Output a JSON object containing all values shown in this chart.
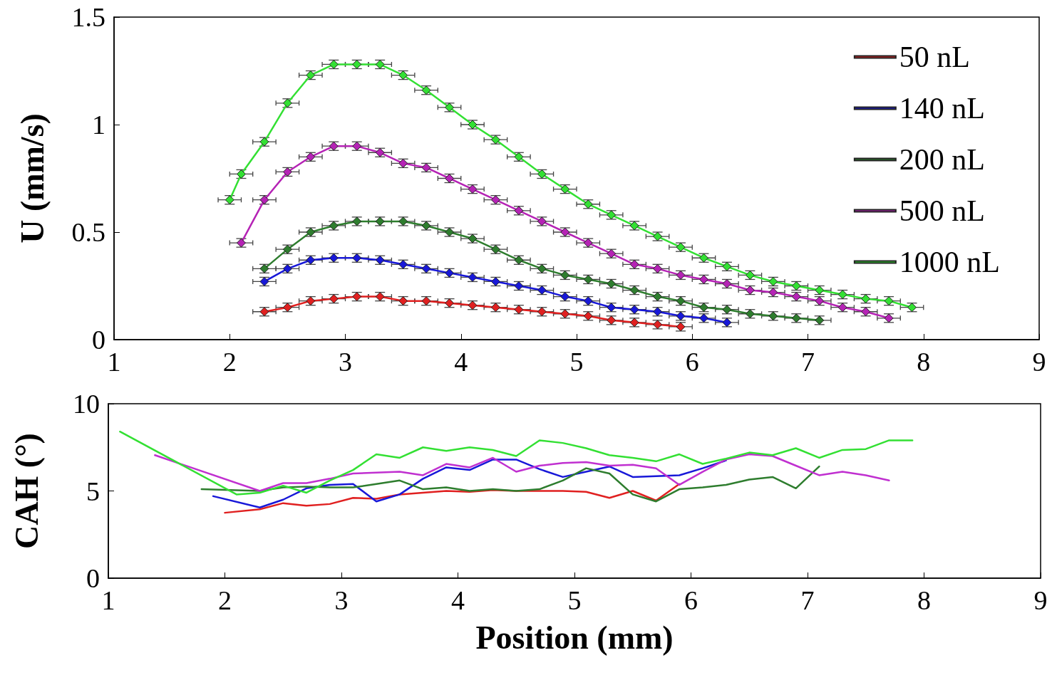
{
  "chart_data": [
    {
      "type": "line",
      "ylabel": "U (mm/s)",
      "xlim": [
        1,
        9
      ],
      "xticks": [
        1,
        2,
        3,
        4,
        5,
        6,
        7,
        8,
        9
      ],
      "ylim": [
        0,
        1.5
      ],
      "yticks": [
        0,
        0.5,
        1,
        1.5
      ],
      "grid": false,
      "legend": "top right",
      "marker": "diamond",
      "line_style": "solid",
      "series": [
        {
          "name": "50 nL",
          "color": "#e02020",
          "x": [
            2.3,
            2.5,
            2.7,
            2.9,
            3.1,
            3.3,
            3.5,
            3.7,
            3.9,
            4.1,
            4.3,
            4.5,
            4.7,
            4.9,
            5.1,
            5.3,
            5.5,
            5.7,
            5.9
          ],
          "values": [
            0.13,
            0.15,
            0.18,
            0.19,
            0.2,
            0.2,
            0.18,
            0.18,
            0.17,
            0.16,
            0.15,
            0.14,
            0.13,
            0.12,
            0.11,
            0.09,
            0.08,
            0.07,
            0.06
          ],
          "errors": [
            0.02,
            0.02,
            0.02,
            0.02,
            0.02,
            0.02,
            0.02,
            0.02,
            0.02,
            0.02,
            0.02,
            0.02,
            0.02,
            0.02,
            0.02,
            0.02,
            0.02,
            0.02,
            0.02
          ],
          "xerrors": [
            0.1,
            0.1,
            0.1,
            0.1,
            0.1,
            0.1,
            0.1,
            0.1,
            0.1,
            0.1,
            0.1,
            0.1,
            0.1,
            0.1,
            0.1,
            0.1,
            0.1,
            0.1,
            0.1
          ]
        },
        {
          "name": "140 nL",
          "color": "#1818d8",
          "x": [
            2.3,
            2.5,
            2.7,
            2.9,
            3.1,
            3.3,
            3.5,
            3.7,
            3.9,
            4.1,
            4.3,
            4.5,
            4.7,
            4.9,
            5.1,
            5.3,
            5.5,
            5.7,
            5.9,
            6.1,
            6.3
          ],
          "values": [
            0.27,
            0.33,
            0.37,
            0.38,
            0.38,
            0.37,
            0.35,
            0.33,
            0.31,
            0.29,
            0.27,
            0.25,
            0.23,
            0.2,
            0.18,
            0.15,
            0.14,
            0.13,
            0.11,
            0.1,
            0.08
          ],
          "errors": [
            0.02,
            0.02,
            0.02,
            0.02,
            0.02,
            0.02,
            0.02,
            0.02,
            0.02,
            0.02,
            0.02,
            0.02,
            0.02,
            0.02,
            0.02,
            0.02,
            0.02,
            0.02,
            0.02,
            0.02,
            0.02
          ],
          "xerrors": [
            0.1,
            0.1,
            0.1,
            0.1,
            0.1,
            0.1,
            0.1,
            0.1,
            0.1,
            0.1,
            0.1,
            0.1,
            0.1,
            0.1,
            0.1,
            0.1,
            0.1,
            0.1,
            0.1,
            0.1,
            0.1
          ]
        },
        {
          "name": "200 nL",
          "color": "#2e7d2e",
          "x": [
            2.3,
            2.5,
            2.7,
            2.9,
            3.1,
            3.3,
            3.5,
            3.7,
            3.9,
            4.1,
            4.3,
            4.5,
            4.7,
            4.9,
            5.1,
            5.3,
            5.5,
            5.7,
            5.9,
            6.1,
            6.3,
            6.5,
            6.7,
            6.9,
            7.1
          ],
          "values": [
            0.33,
            0.42,
            0.5,
            0.53,
            0.55,
            0.55,
            0.55,
            0.53,
            0.5,
            0.47,
            0.42,
            0.37,
            0.33,
            0.3,
            0.28,
            0.26,
            0.23,
            0.2,
            0.18,
            0.15,
            0.14,
            0.12,
            0.11,
            0.1,
            0.09
          ],
          "errors": [
            0.02,
            0.02,
            0.02,
            0.02,
            0.02,
            0.02,
            0.02,
            0.02,
            0.02,
            0.02,
            0.02,
            0.02,
            0.02,
            0.02,
            0.02,
            0.02,
            0.02,
            0.02,
            0.02,
            0.02,
            0.02,
            0.02,
            0.02,
            0.02,
            0.02
          ],
          "xerrors": [
            0.1,
            0.1,
            0.1,
            0.1,
            0.1,
            0.1,
            0.1,
            0.1,
            0.1,
            0.1,
            0.1,
            0.1,
            0.1,
            0.1,
            0.1,
            0.1,
            0.1,
            0.1,
            0.1,
            0.1,
            0.1,
            0.1,
            0.1,
            0.1,
            0.1
          ]
        },
        {
          "name": "500 nL",
          "color": "#b523b5",
          "x": [
            2.1,
            2.3,
            2.5,
            2.7,
            2.9,
            3.1,
            3.3,
            3.5,
            3.7,
            3.9,
            4.1,
            4.3,
            4.5,
            4.7,
            4.9,
            5.1,
            5.3,
            5.5,
            5.7,
            5.9,
            6.1,
            6.3,
            6.5,
            6.7,
            6.9,
            7.1,
            7.3,
            7.5,
            7.7
          ],
          "values": [
            0.45,
            0.65,
            0.78,
            0.85,
            0.9,
            0.9,
            0.87,
            0.82,
            0.8,
            0.75,
            0.7,
            0.65,
            0.6,
            0.55,
            0.5,
            0.45,
            0.4,
            0.35,
            0.33,
            0.3,
            0.28,
            0.26,
            0.23,
            0.22,
            0.2,
            0.18,
            0.15,
            0.13,
            0.1
          ],
          "errors": [
            0.02,
            0.02,
            0.02,
            0.02,
            0.02,
            0.02,
            0.02,
            0.02,
            0.02,
            0.02,
            0.02,
            0.02,
            0.02,
            0.02,
            0.02,
            0.02,
            0.02,
            0.02,
            0.02,
            0.02,
            0.02,
            0.02,
            0.02,
            0.02,
            0.02,
            0.02,
            0.02,
            0.02,
            0.02
          ],
          "xerrors": [
            0.1,
            0.1,
            0.1,
            0.1,
            0.1,
            0.1,
            0.1,
            0.1,
            0.1,
            0.1,
            0.1,
            0.1,
            0.1,
            0.1,
            0.1,
            0.1,
            0.1,
            0.1,
            0.1,
            0.1,
            0.1,
            0.1,
            0.1,
            0.1,
            0.1,
            0.1,
            0.1,
            0.1,
            0.1
          ]
        },
        {
          "name": "1000 nL",
          "color": "#33e033",
          "x": [
            2.0,
            2.1,
            2.3,
            2.5,
            2.7,
            2.9,
            3.1,
            3.3,
            3.5,
            3.7,
            3.9,
            4.1,
            4.3,
            4.5,
            4.7,
            4.9,
            5.1,
            5.3,
            5.5,
            5.7,
            5.9,
            6.1,
            6.3,
            6.5,
            6.7,
            6.9,
            7.1,
            7.3,
            7.5,
            7.7,
            7.9
          ],
          "values": [
            0.65,
            0.77,
            0.92,
            1.1,
            1.23,
            1.28,
            1.28,
            1.28,
            1.23,
            1.16,
            1.08,
            1.0,
            0.93,
            0.85,
            0.77,
            0.7,
            0.63,
            0.58,
            0.53,
            0.48,
            0.43,
            0.38,
            0.34,
            0.3,
            0.27,
            0.25,
            0.23,
            0.21,
            0.19,
            0.18,
            0.15
          ],
          "errors": [
            0.02,
            0.02,
            0.02,
            0.02,
            0.02,
            0.02,
            0.02,
            0.02,
            0.02,
            0.02,
            0.02,
            0.02,
            0.02,
            0.02,
            0.02,
            0.02,
            0.02,
            0.02,
            0.02,
            0.02,
            0.02,
            0.02,
            0.02,
            0.02,
            0.02,
            0.02,
            0.02,
            0.02,
            0.02,
            0.02,
            0.02
          ],
          "xerrors": [
            0.1,
            0.1,
            0.1,
            0.1,
            0.1,
            0.1,
            0.1,
            0.1,
            0.1,
            0.1,
            0.1,
            0.1,
            0.1,
            0.1,
            0.1,
            0.1,
            0.1,
            0.1,
            0.1,
            0.1,
            0.1,
            0.1,
            0.1,
            0.1,
            0.1,
            0.1,
            0.1,
            0.1,
            0.1,
            0.1,
            0.1
          ]
        }
      ]
    },
    {
      "type": "line",
      "xlabel": "Position (mm)",
      "ylabel": "CAH (°)",
      "xlim": [
        1,
        9
      ],
      "xticks": [
        1,
        2,
        3,
        4,
        5,
        6,
        7,
        8,
        9
      ],
      "ylim": [
        0,
        10
      ],
      "yticks": [
        0,
        5,
        10
      ],
      "grid": false,
      "legend": false,
      "marker": "none",
      "line_style": "solid",
      "series": [
        {
          "color": "#e02020",
          "x": [
            2.0,
            2.3,
            2.5,
            2.7,
            2.9,
            3.1,
            3.3,
            3.5,
            3.7,
            3.9,
            4.1,
            4.3,
            4.5,
            4.7,
            4.9,
            5.1,
            5.3,
            5.5,
            5.7,
            5.9
          ],
          "values": [
            3.75,
            3.95,
            4.3,
            4.15,
            4.25,
            4.6,
            4.55,
            4.8,
            4.9,
            5.0,
            4.95,
            5.05,
            5.0,
            5.0,
            5.0,
            4.95,
            4.6,
            5.0,
            4.45,
            5.4
          ]
        },
        {
          "color": "#1818d8",
          "x": [
            1.9,
            2.3,
            2.5,
            2.7,
            2.9,
            3.1,
            3.3,
            3.5,
            3.7,
            3.9,
            4.1,
            4.3,
            4.5,
            4.7,
            4.9,
            5.1,
            5.3,
            5.5,
            5.7,
            5.9,
            6.1,
            6.3
          ],
          "values": [
            4.7,
            4.05,
            4.5,
            5.15,
            5.35,
            5.4,
            4.4,
            4.8,
            5.7,
            6.35,
            6.2,
            6.8,
            6.8,
            6.25,
            5.8,
            6.1,
            6.4,
            5.8,
            5.85,
            5.9,
            6.3,
            6.75
          ]
        },
        {
          "color": "#2e7d2e",
          "x": [
            1.8,
            2.3,
            2.5,
            2.7,
            2.9,
            3.1,
            3.3,
            3.5,
            3.7,
            3.9,
            4.1,
            4.3,
            4.5,
            4.7,
            4.9,
            5.1,
            5.3,
            5.5,
            5.7,
            5.9,
            6.1,
            6.3,
            6.5,
            6.7,
            6.9,
            7.1
          ],
          "values": [
            5.1,
            5.0,
            5.2,
            5.25,
            5.2,
            5.2,
            5.4,
            5.6,
            5.1,
            5.2,
            5.0,
            5.1,
            5.0,
            5.1,
            5.6,
            6.3,
            6.0,
            4.8,
            4.4,
            5.1,
            5.2,
            5.35,
            5.65,
            5.8,
            5.15,
            6.4
          ]
        },
        {
          "color": "#c030d0",
          "x": [
            1.4,
            2.3,
            2.5,
            2.7,
            2.9,
            3.1,
            3.3,
            3.5,
            3.7,
            3.9,
            4.1,
            4.3,
            4.5,
            4.7,
            4.9,
            5.1,
            5.3,
            5.5,
            5.7,
            5.9,
            6.1,
            6.3,
            6.5,
            6.7,
            6.9,
            7.1,
            7.3,
            7.5,
            7.7
          ],
          "values": [
            7.05,
            5.0,
            5.45,
            5.45,
            5.7,
            6.0,
            6.05,
            6.1,
            5.9,
            6.55,
            6.35,
            6.9,
            6.1,
            6.45,
            6.6,
            6.65,
            6.45,
            6.5,
            6.3,
            5.35,
            6.1,
            6.8,
            7.1,
            7.0,
            6.45,
            5.9,
            6.1,
            5.9,
            5.6
          ]
        },
        {
          "color": "#33e033",
          "x": [
            1.1,
            2.1,
            2.3,
            2.5,
            2.7,
            2.9,
            3.1,
            3.3,
            3.5,
            3.7,
            3.9,
            4.1,
            4.3,
            4.5,
            4.7,
            4.9,
            5.1,
            5.3,
            5.5,
            5.7,
            5.9,
            6.1,
            6.3,
            6.5,
            6.7,
            6.9,
            7.1,
            7.3,
            7.5,
            7.7,
            7.9
          ],
          "values": [
            8.4,
            4.8,
            4.9,
            5.3,
            4.9,
            5.6,
            6.2,
            7.1,
            6.9,
            7.5,
            7.3,
            7.5,
            7.35,
            7.0,
            7.9,
            7.75,
            7.45,
            7.05,
            6.9,
            6.7,
            7.1,
            6.55,
            6.85,
            7.2,
            7.05,
            7.45,
            6.9,
            7.35,
            7.4,
            7.9,
            7.9
          ]
        }
      ]
    }
  ]
}
